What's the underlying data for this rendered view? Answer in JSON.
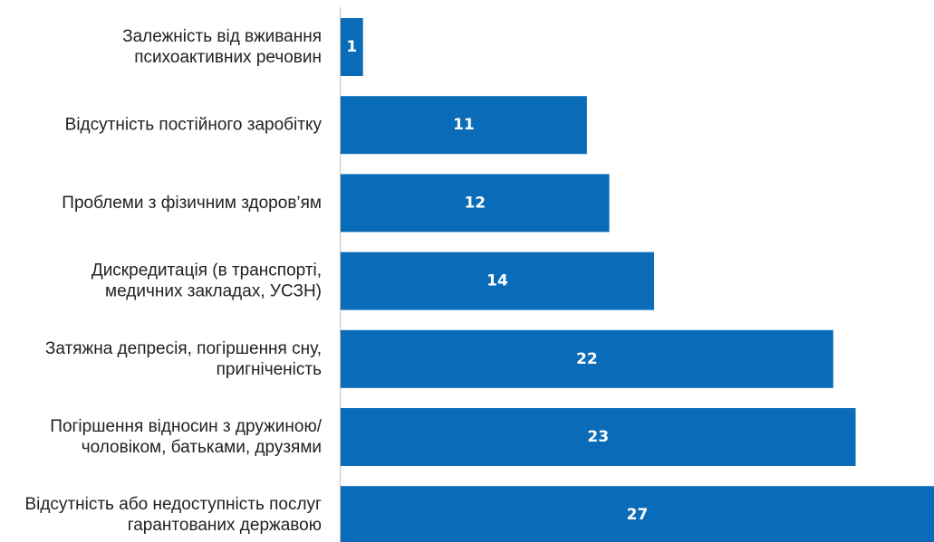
{
  "chart_data": {
    "type": "bar",
    "orientation": "horizontal",
    "categories": [
      [
        "Залежність від вживання",
        "психоактивних речовин"
      ],
      [
        "Відсутність постійного заробітку"
      ],
      [
        "Проблеми з фізичним здоров’ям"
      ],
      [
        "Дискредитація (в транспорті,",
        "медичних закладах, УСЗН)"
      ],
      [
        "Затяжна депресія, погіршення сну,",
        "пригніченість"
      ],
      [
        "Погіршення відносин з дружиною/",
        "чоловіком, батьками, друзями"
      ],
      [
        "Відсутність або недоступність послуг",
        "гарантованих державою"
      ]
    ],
    "values": [
      1,
      11,
      12,
      14,
      22,
      23,
      27
    ],
    "data_labels": [
      "1",
      "11",
      "12",
      "14",
      "22",
      "23",
      "27"
    ],
    "xlim": [
      0,
      26.5
    ],
    "grid": false,
    "bar_color": "#0a6cb8",
    "axis_color": "#bfbfbf"
  }
}
